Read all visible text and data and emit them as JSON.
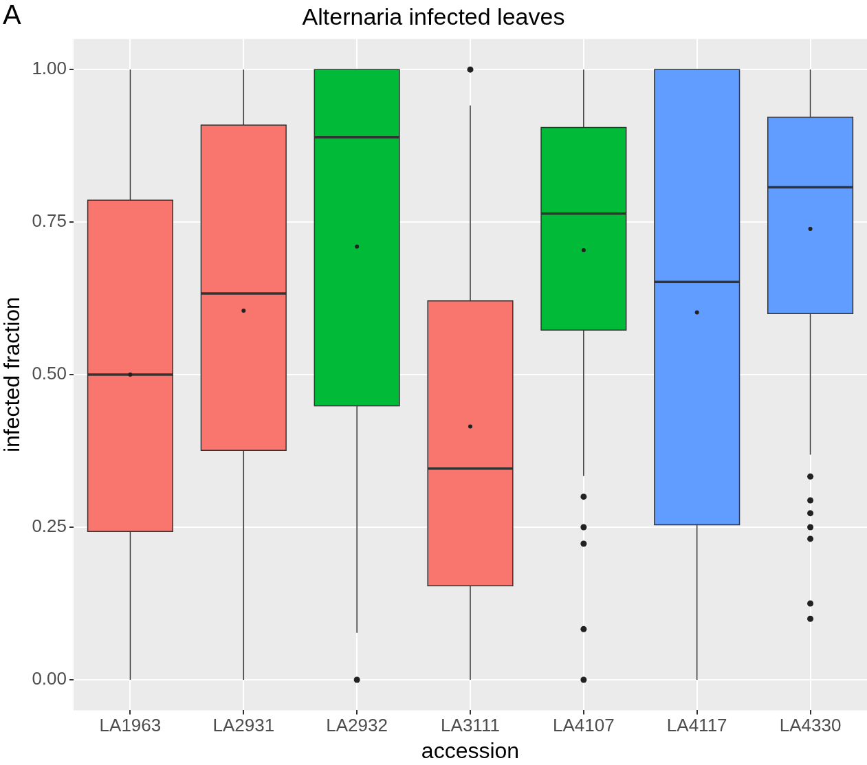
{
  "chart_data": {
    "type": "box",
    "title": "Alternaria infected leaves",
    "xlabel": "accession",
    "ylabel": "infected fraction",
    "annotations": [
      "A"
    ],
    "categories": [
      "LA1963",
      "LA2931",
      "LA2932",
      "LA3111",
      "LA4107",
      "LA4117",
      "LA4330"
    ],
    "colors": [
      "#f8766d",
      "#f8766d",
      "#00ba38",
      "#f8766d",
      "#00ba38",
      "#619cff",
      "#619cff"
    ],
    "boxes": [
      {
        "low": 0,
        "q1": 0.243,
        "median": 0.5,
        "q3": 0.786,
        "high": 1,
        "mean": 0.5
      },
      {
        "low": 0,
        "q1": 0.376,
        "median": 0.633,
        "q3": 0.909,
        "high": 1,
        "mean": 0.605
      },
      {
        "low": 0.077,
        "q1": 0.449,
        "median": 0.889,
        "q3": 1,
        "high": 1,
        "mean": 0.71,
        "outliers": [
          0
        ]
      },
      {
        "low": 0,
        "q1": 0.154,
        "median": 0.346,
        "q3": 0.621,
        "high": 0.941,
        "mean": 0.415,
        "outliers": [
          1
        ]
      },
      {
        "low": 0.334,
        "q1": 0.573,
        "median": 0.764,
        "q3": 0.905,
        "high": 1,
        "mean": 0.704,
        "outliers": [
          0.3,
          0.25,
          0.223,
          0.083,
          0
        ]
      },
      {
        "low": 0,
        "q1": 0.254,
        "median": 0.652,
        "q3": 1,
        "high": 1,
        "mean": 0.602
      },
      {
        "low": 0.369,
        "q1": 0.6,
        "median": 0.807,
        "q3": 0.922,
        "high": 1,
        "mean": 0.739,
        "outliers": [
          0.333,
          0.294,
          0.273,
          0.25,
          0.231,
          0.125,
          0.1
        ]
      }
    ],
    "ylim": [
      -0.05,
      1.05
    ],
    "yticks": [
      {
        "value": 0,
        "label": "0.00"
      },
      {
        "value": 0.25,
        "label": "0.25"
      },
      {
        "value": 0.5,
        "label": "0.50"
      },
      {
        "value": 0.75,
        "label": "0.75"
      },
      {
        "value": 1,
        "label": "1.00"
      }
    ],
    "grid": true,
    "legend": false
  }
}
